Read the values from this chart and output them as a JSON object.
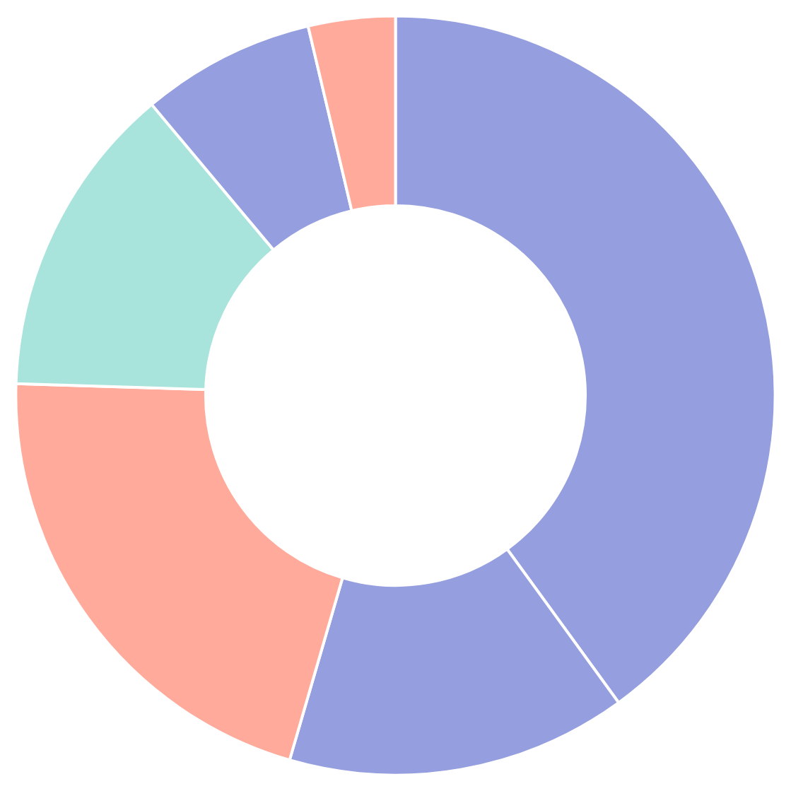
{
  "chart_data": {
    "type": "donut",
    "categories": [
      null,
      null,
      null,
      null,
      null,
      null
    ],
    "values": [
      40,
      14.5,
      21,
      13.4,
      7.4,
      3.7
    ],
    "colors": [
      "#959ede",
      "#959ede",
      "#ffaa9a",
      "#a8e4dc",
      "#959ede",
      "#ffaa9a"
    ]
  }
}
